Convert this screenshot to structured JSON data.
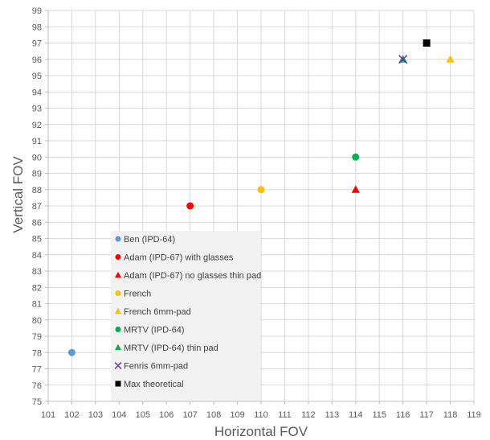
{
  "chart_data": {
    "type": "scatter",
    "title": "",
    "xlabel": "Horizontal FOV",
    "ylabel": "Vertical FOV",
    "xlim": [
      101,
      119
    ],
    "ylim": [
      75,
      99
    ],
    "xticks": [
      101,
      102,
      103,
      104,
      105,
      106,
      107,
      108,
      109,
      110,
      111,
      112,
      113,
      114,
      115,
      116,
      117,
      118,
      119
    ],
    "yticks": [
      75,
      76,
      77,
      78,
      79,
      80,
      81,
      82,
      83,
      84,
      85,
      86,
      87,
      88,
      89,
      90,
      91,
      92,
      93,
      94,
      95,
      96,
      97,
      98,
      99
    ],
    "grid": true,
    "legend_position": "bottom-left inside",
    "series": [
      {
        "name": "Ben (IPD-64)",
        "marker": "circle",
        "color": "#5B9BD5",
        "points": [
          {
            "x": 102,
            "y": 78
          }
        ]
      },
      {
        "name": "Adam (IPD-67) with glasses",
        "marker": "circle",
        "color": "#FF0000",
        "points": [
          {
            "x": 107,
            "y": 87
          }
        ]
      },
      {
        "name": "Adam (IPD-67) no glasses thin pad",
        "marker": "triangle",
        "color": "#FF0000",
        "points": [
          {
            "x": 114,
            "y": 88
          }
        ]
      },
      {
        "name": "French",
        "marker": "circle",
        "color": "#FFC000",
        "points": [
          {
            "x": 110,
            "y": 88
          }
        ]
      },
      {
        "name": "French 6mm-pad",
        "marker": "triangle",
        "color": "#FFC000",
        "points": [
          {
            "x": 118,
            "y": 96
          }
        ]
      },
      {
        "name": "MRTV (IPD-64)",
        "marker": "circle",
        "color": "#00B050",
        "points": [
          {
            "x": 114,
            "y": 90
          }
        ]
      },
      {
        "name": "MRTV (IPD-64) thin pad",
        "marker": "triangle",
        "color": "#00B050",
        "points": [
          {
            "x": 116,
            "y": 96
          }
        ]
      },
      {
        "name": "Fenris 6mm-pad",
        "marker": "x",
        "color": "#7030A0",
        "points": [
          {
            "x": 116,
            "y": 96
          }
        ]
      },
      {
        "name": "Max theoretical",
        "marker": "square",
        "color": "#000000",
        "points": [
          {
            "x": 117,
            "y": 97
          }
        ]
      }
    ]
  }
}
